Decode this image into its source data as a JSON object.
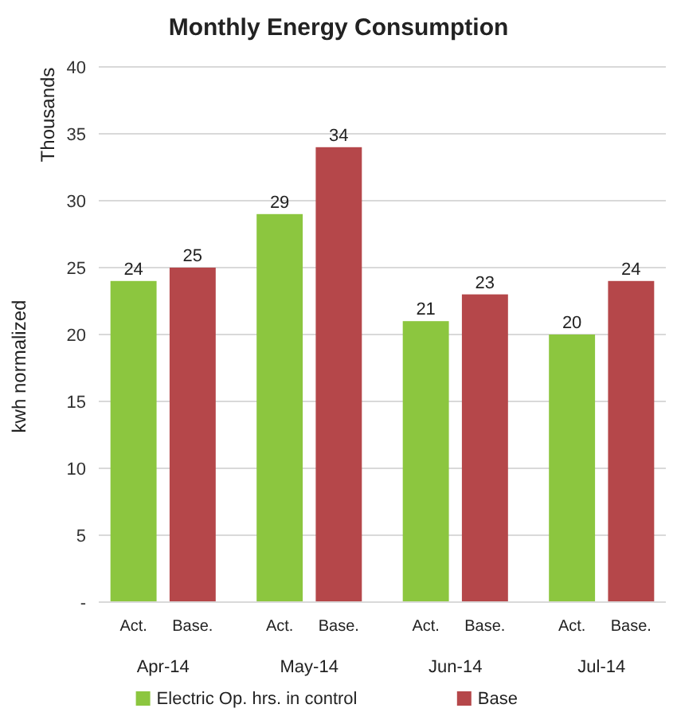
{
  "chart_data": {
    "type": "bar",
    "title": "Monthly Energy Consumption",
    "ylabel": "kwh normalized",
    "categories": [
      "Apr-14",
      "May-14",
      "Jun-14",
      "Jul-14"
    ],
    "series": [
      {
        "name": "Electric Op. hrs. in control",
        "color": "#8cc63f",
        "values": [
          24,
          29,
          21,
          20
        ]
      },
      {
        "name": "Base",
        "color": "#b5474a",
        "values": [
          25,
          34,
          23,
          24
        ]
      }
    ],
    "ylim": [
      0,
      40
    ],
    "yticks": [
      {
        "value": 0,
        "label": "-"
      },
      5,
      10,
      15,
      20,
      25,
      30,
      35,
      40
    ],
    "grid": "y",
    "legend": "bottom",
    "data_labels": true,
    "annotations": [
      "Thousands",
      "Act.",
      "Base.",
      "Act.",
      "Base.",
      "Act.",
      "Base.",
      "Act.",
      "Base."
    ]
  }
}
